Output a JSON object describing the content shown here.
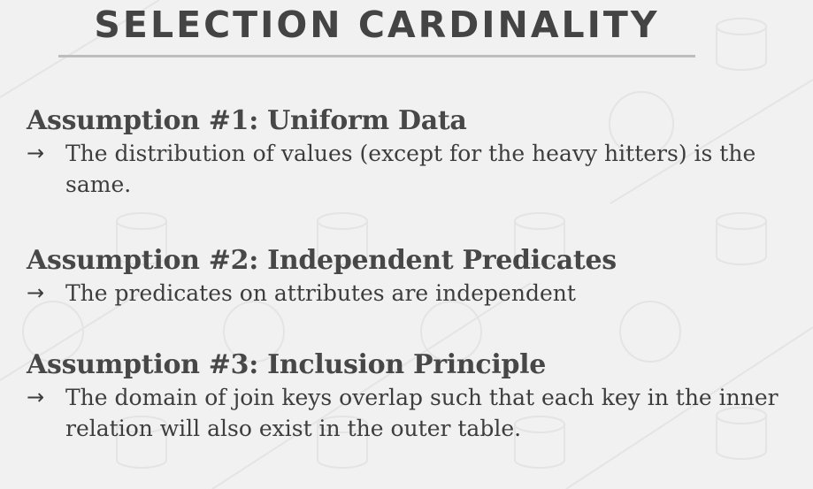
{
  "slide": {
    "title": "SELECTION CARDINALITY",
    "arrow_glyph": "→",
    "assumptions": [
      {
        "heading": "Assumption #1: Uniform Data",
        "bullet": "The distribution of values (except for the heavy hitters) is the same."
      },
      {
        "heading": "Assumption #2: Independent Predicates",
        "bullet": "The predicates on attributes are independent"
      },
      {
        "heading": "Assumption #3: Inclusion Principle",
        "bullet": "The domain of join keys overlap such that each key in the inner relation will also exist in the outer table."
      }
    ]
  },
  "colors": {
    "background": "#f1f1f1",
    "title": "#444444",
    "rule": "#bdbdbd",
    "text": "#3d3d3d"
  }
}
